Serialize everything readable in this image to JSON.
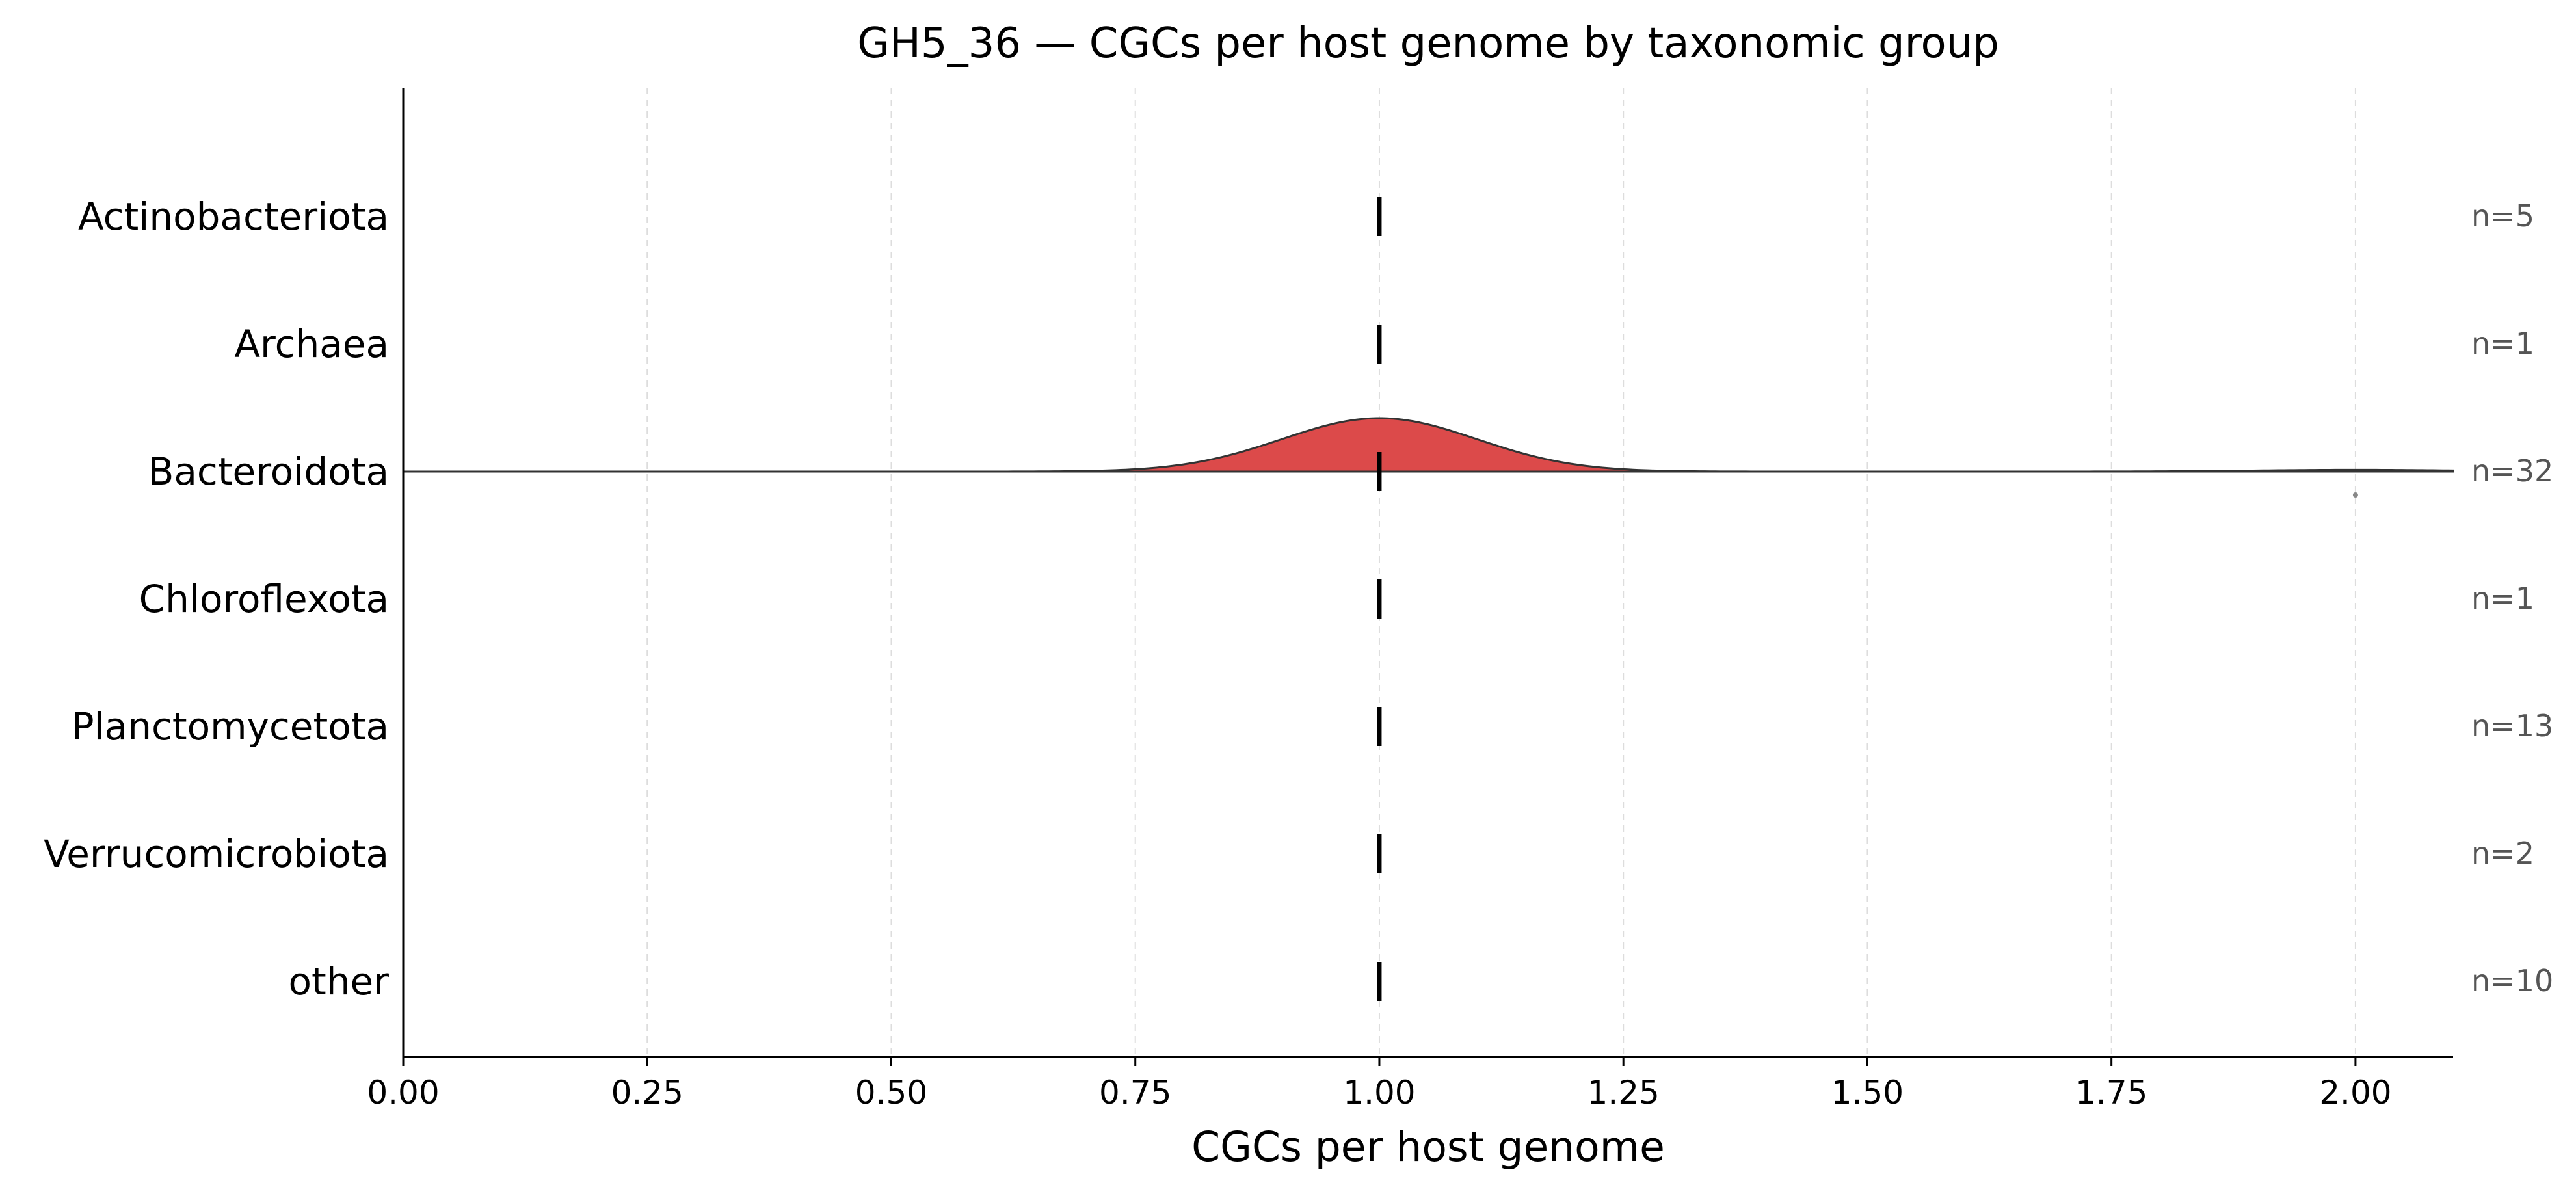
{
  "chart_data": {
    "type": "ridgeline",
    "title": "GH5_36 — CGCs per host genome by taxonomic group",
    "xlabel": "CGCs per host genome",
    "ylabel": "",
    "xlim": [
      0,
      2.1
    ],
    "xticks": [
      "0.00",
      "0.25",
      "0.50",
      "0.75",
      "1.00",
      "1.25",
      "1.50",
      "1.75",
      "2.00"
    ],
    "xtick_values": [
      0,
      0.25,
      0.5,
      0.75,
      1.0,
      1.25,
      1.5,
      1.75,
      2.0
    ],
    "grid": "x-dashed",
    "fill_color": "#dc4a4a",
    "outline_color": "#333333",
    "median_color": "#000000",
    "groups": [
      {
        "label": "Actinobacteriota",
        "n_label": "n=5",
        "median": 1.0,
        "density": false
      },
      {
        "label": "Archaea",
        "n_label": "n=1",
        "median": 1.0,
        "density": false
      },
      {
        "label": "Bacteroidota",
        "n_label": "n=32",
        "median": 1.0,
        "density": true,
        "values": [
          1,
          1,
          1,
          1,
          1,
          1,
          1,
          1,
          1,
          1,
          1,
          1,
          1,
          1,
          1,
          1,
          1,
          1,
          1,
          1,
          1,
          1,
          1,
          1,
          1,
          1,
          1,
          1,
          1,
          1,
          1,
          2
        ]
      },
      {
        "label": "Chloroflexota",
        "n_label": "n=1",
        "median": 1.0,
        "density": false
      },
      {
        "label": "Planctomycetota",
        "n_label": "n=13",
        "median": 1.0,
        "density": false
      },
      {
        "label": "Verrucomicrobiota",
        "n_label": "n=2",
        "median": 1.0,
        "density": false
      },
      {
        "label": "other",
        "n_label": "n=10",
        "median": 1.0,
        "density": false
      }
    ],
    "outlier_points": [
      {
        "group": "Bacteroidota",
        "x": 2.0
      }
    ]
  }
}
